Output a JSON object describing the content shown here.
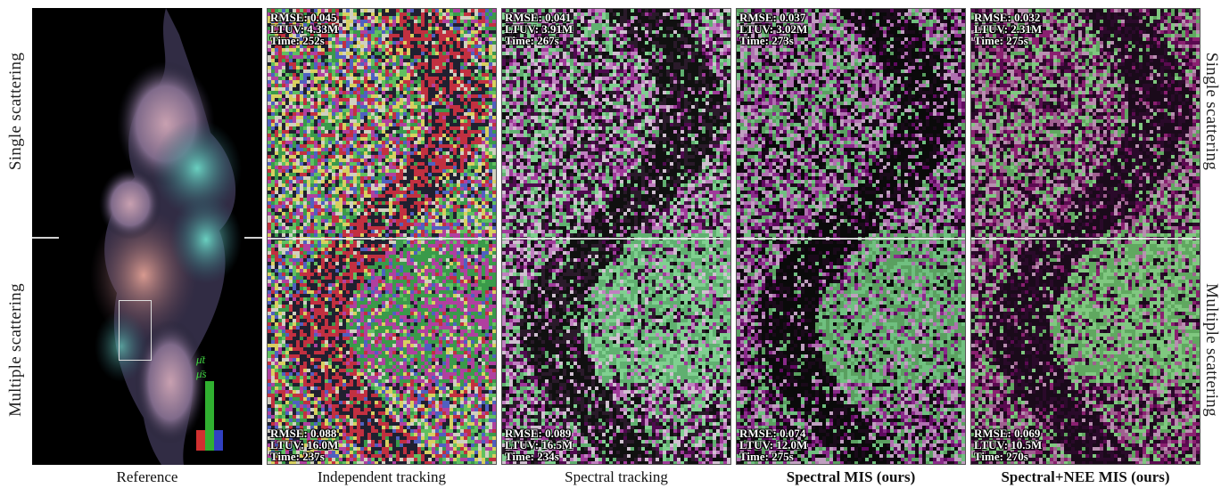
{
  "side_labels": {
    "left_top": "Single scattering",
    "left_bottom": "Multiple scattering",
    "right_top": "Single scattering",
    "right_bottom": "Multiple scattering"
  },
  "reference": {
    "caption": "Reference",
    "legend_t": "μ̄t",
    "legend_s": "μ̄s",
    "bar_levels": {
      "red": 0.3,
      "green": 1.0,
      "blue": 0.3
    }
  },
  "panels": [
    {
      "caption": "Independent tracking",
      "top": {
        "rmse": "RMSE: 0.045",
        "ltuv": "LTUV: 4.33M",
        "time": "Time: 252s"
      },
      "bottom": {
        "rmse": "RMSE: 0.088",
        "ltuv": "LTUV: 16.0M",
        "time": "Time: 237s"
      },
      "palette": [
        "#c23040",
        "#3a9a4a",
        "#5060c0",
        "#d8d060",
        "#b040a0",
        "#60c060",
        "#202030",
        "#d0d0c0"
      ]
    },
    {
      "caption": "Spectral tracking",
      "top": {
        "rmse": "RMSE: 0.041",
        "ltuv": "LTUV: 3.91M",
        "time": "Time: 267s"
      },
      "bottom": {
        "rmse": "RMSE: 0.089",
        "ltuv": "LTUV: 16.5M",
        "time": "Time: 234s"
      },
      "palette": [
        "#a03a9a",
        "#60b070",
        "#2a1a2a",
        "#c080c0",
        "#80d090",
        "#500a50",
        "#d0c0d0",
        "#101010"
      ]
    },
    {
      "caption": "Spectral MIS (ours)",
      "top": {
        "rmse": "RMSE: 0.037",
        "ltuv": "LTUV: 3.02M",
        "time": "Time: 273s"
      },
      "bottom": {
        "rmse": "RMSE: 0.074",
        "ltuv": "LTUV: 12.0M",
        "time": "Time: 275s"
      },
      "palette": [
        "#8a2a8a",
        "#5aa060",
        "#1a0a1a",
        "#b070b0",
        "#70c080",
        "#600a60",
        "#c0a0c0",
        "#0a0a0a"
      ]
    },
    {
      "caption": "Spectral+NEE MIS (ours)",
      "top": {
        "rmse": "RMSE: 0.032",
        "ltuv": "LTUV: 2.31M",
        "time": "Time: 275s"
      },
      "bottom": {
        "rmse": "RMSE: 0.069",
        "ltuv": "LTUV: 10.5M",
        "time": "Time: 270s"
      },
      "palette": [
        "#8a2070",
        "#60a860",
        "#2a0a2a",
        "#a06090",
        "#80c880",
        "#5a0a50",
        "#b890b0",
        "#1a0a1a"
      ]
    }
  ]
}
